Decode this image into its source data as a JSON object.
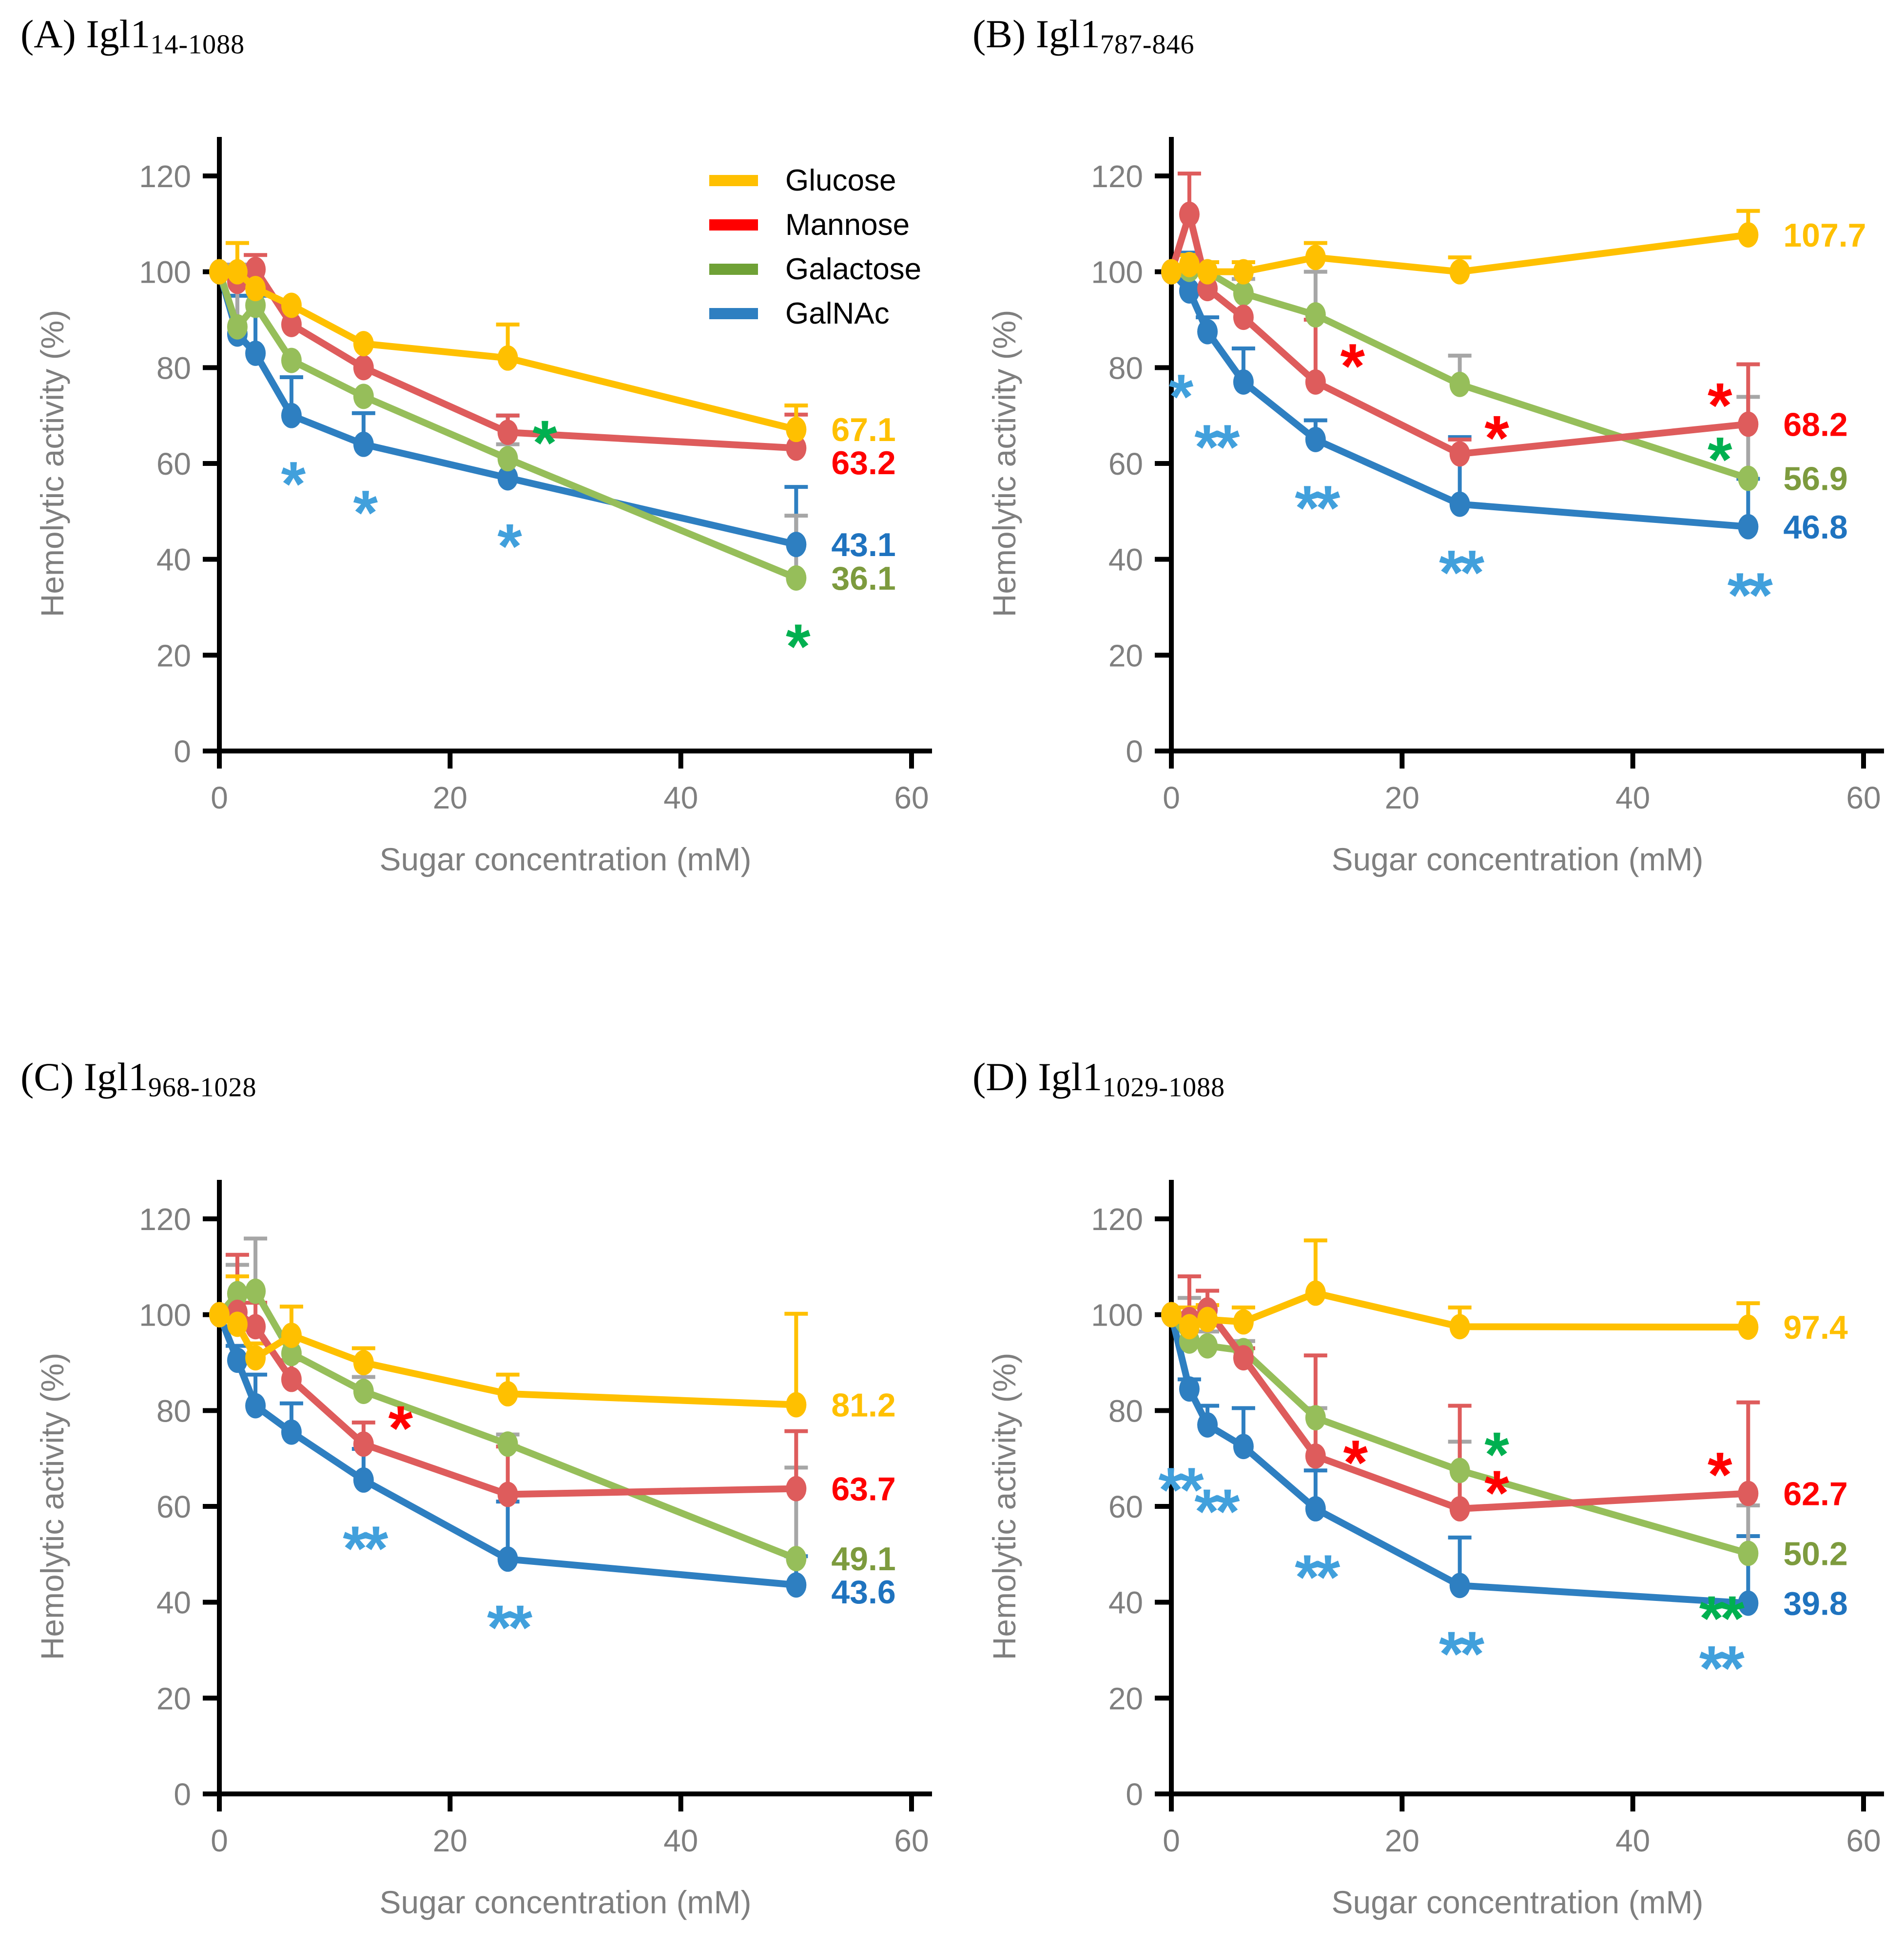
{
  "page": {
    "background": "#FFFFFF"
  },
  "legend": {
    "items": [
      {
        "label": "Glucose",
        "color": "#FFC000"
      },
      {
        "label": "Mannose",
        "color": "#FF0000"
      },
      {
        "label": "Galactose",
        "color": "#6FA136"
      },
      {
        "label": "GalNAc",
        "color": "#2E7FC1"
      }
    ]
  },
  "series_styles": {
    "Glucose": {
      "line": "#FFC000",
      "label": "#FFC000",
      "star": "#FFC000",
      "err": "#FFC000"
    },
    "Mannose": {
      "line": "#DE5C5C",
      "label": "#FF0000",
      "star": "#FF0000",
      "err": "#DE5C5C"
    },
    "Galactose": {
      "line": "#96BE5A",
      "label": "#7D9B3E",
      "star": "#00B050",
      "err": "#A6A6A6"
    },
    "GalNAc": {
      "line": "#2E7FC1",
      "label": "#1F73BF",
      "star": "#41A0DC",
      "err": "#2E7FC1"
    }
  },
  "axes": {
    "x_label": "Sugar concentration (mM)",
    "y_label": "Hemolytic activity (%)",
    "x_ticks": [
      0,
      20,
      40,
      60
    ],
    "y_ticks": [
      0,
      20,
      40,
      60,
      80,
      100,
      120
    ],
    "xlim": [
      0,
      60
    ],
    "ylim": [
      0,
      120
    ],
    "text_color": "#7F7F7F",
    "axis_color": "#000000"
  },
  "chart_data": [
    {
      "type": "line",
      "panel": "A",
      "title_prefix": "(A) Igl1",
      "title_sub": "14-1088",
      "x": [
        0,
        1.56,
        3.13,
        6.25,
        12.5,
        25,
        50
      ],
      "series": [
        {
          "name": "Glucose",
          "values": [
            100,
            100,
            96.5,
            93,
            85,
            82,
            67.1
          ],
          "err_up": [
            0,
            6,
            0,
            0,
            0,
            7,
            5
          ],
          "end_label": "67.1"
        },
        {
          "name": "Mannose",
          "values": [
            100,
            98,
            100.5,
            89,
            80,
            66.5,
            63.2
          ],
          "err_up": [
            0,
            0,
            3,
            0,
            0,
            3.5,
            7
          ],
          "end_label": "63.2"
        },
        {
          "name": "Galactose",
          "values": [
            100,
            88.5,
            93,
            81.5,
            74,
            61,
            36.1
          ],
          "err_up": [
            0,
            13,
            0,
            0,
            0,
            3,
            13
          ],
          "end_label": "36.1"
        },
        {
          "name": "GalNAc",
          "values": [
            100,
            87,
            83,
            70,
            64,
            57,
            43.1
          ],
          "err_up": [
            0,
            8,
            12,
            8,
            6.5,
            13,
            12
          ],
          "end_label": "43.1"
        }
      ],
      "annotations": [
        {
          "series": "GalNAc",
          "point": 3,
          "text": "*",
          "placement": "below"
        },
        {
          "series": "GalNAc",
          "point": 4,
          "text": "*",
          "placement": "below"
        },
        {
          "series": "GalNAc",
          "point": 5,
          "text": "*",
          "placement": "below"
        },
        {
          "series": "Galactose",
          "point": 5,
          "text": "*",
          "placement": "aboveright"
        },
        {
          "series": "Galactose",
          "point": 6,
          "text": "*",
          "placement": "below"
        }
      ]
    },
    {
      "type": "line",
      "panel": "B",
      "title_prefix": "(B) Igl1",
      "title_sub": "787-846",
      "x": [
        0,
        1.56,
        3.13,
        6.25,
        12.5,
        25,
        50
      ],
      "series": [
        {
          "name": "Glucose",
          "values": [
            100,
            101.5,
            100,
            100,
            103,
            100,
            107.7
          ],
          "err_up": [
            0,
            2,
            2,
            2,
            3,
            3,
            5
          ],
          "end_label": "107.7"
        },
        {
          "name": "Mannose",
          "values": [
            100,
            112,
            96.5,
            90.5,
            77,
            62,
            68.2
          ],
          "err_up": [
            0,
            8.5,
            0,
            0,
            13,
            3,
            12.5
          ],
          "end_label": "68.2"
        },
        {
          "name": "Galactose",
          "values": [
            100,
            100.5,
            100,
            95.5,
            91,
            76.5,
            56.9
          ],
          "err_up": [
            0,
            3,
            0,
            3,
            9,
            6,
            17
          ],
          "end_label": "56.9"
        },
        {
          "name": "GalNAc",
          "values": [
            100,
            96,
            87.5,
            77,
            65,
            51.5,
            46.8
          ],
          "err_up": [
            0,
            8,
            3,
            7,
            4,
            14,
            10
          ],
          "end_label": "46.8"
        }
      ],
      "annotations": [
        {
          "series": "GalNAc",
          "point": 2,
          "text": "*",
          "placement": "belowleft"
        },
        {
          "series": "GalNAc",
          "point": 3,
          "text": "**",
          "placement": "belowleft"
        },
        {
          "series": "GalNAc",
          "point": 4,
          "text": "**",
          "placement": "below"
        },
        {
          "series": "GalNAc",
          "point": 5,
          "text": "**",
          "placement": "below"
        },
        {
          "series": "GalNAc",
          "point": 6,
          "text": "**",
          "placement": "below"
        },
        {
          "series": "Mannose",
          "point": 4,
          "text": "*",
          "placement": "aboveright"
        },
        {
          "series": "Mannose",
          "point": 5,
          "text": "*",
          "placement": "aboveright"
        },
        {
          "series": "Mannose",
          "point": 6,
          "text": "*",
          "placement": "aboveleft"
        },
        {
          "series": "Galactose",
          "point": 6,
          "text": "*",
          "placement": "aboveleft"
        }
      ]
    },
    {
      "type": "line",
      "panel": "C",
      "title_prefix": "(C) Igl1",
      "title_sub": "968-1028",
      "x": [
        0,
        1.56,
        3.13,
        6.25,
        12.5,
        25,
        50
      ],
      "series": [
        {
          "name": "Glucose",
          "values": [
            100,
            98,
            91,
            95.7,
            90,
            83.5,
            81.2
          ],
          "err_up": [
            0,
            10,
            3,
            6,
            3,
            4,
            19
          ],
          "end_label": "81.2"
        },
        {
          "name": "Mannose",
          "values": [
            100,
            100.5,
            97.5,
            86.5,
            73,
            62.5,
            63.7
          ],
          "err_up": [
            0,
            12,
            5,
            4,
            4.5,
            10,
            12
          ],
          "end_label": "63.7"
        },
        {
          "name": "Galactose",
          "values": [
            100,
            104.4,
            104.9,
            91.9,
            84,
            73,
            49.1
          ],
          "err_up": [
            0,
            6,
            11,
            0,
            3,
            2,
            19
          ],
          "end_label": "49.1"
        },
        {
          "name": "GalNAc",
          "values": [
            100,
            90.5,
            81,
            75.5,
            65.5,
            49,
            43.6
          ],
          "err_up": [
            0,
            3,
            6.5,
            6,
            6.5,
            12,
            6
          ],
          "end_label": "43.6"
        }
      ],
      "annotations": [
        {
          "series": "Mannose",
          "point": 4,
          "text": "*",
          "placement": "aboveright"
        },
        {
          "series": "GalNAc",
          "point": 4,
          "text": "**",
          "placement": "below"
        },
        {
          "series": "GalNAc",
          "point": 5,
          "text": "**",
          "placement": "below"
        }
      ]
    },
    {
      "type": "line",
      "panel": "D",
      "title_prefix": "(D) Igl1",
      "title_sub": "1029-1088",
      "x": [
        0,
        1.56,
        3.13,
        6.25,
        12.5,
        25,
        50
      ],
      "series": [
        {
          "name": "Glucose",
          "values": [
            100,
            97.5,
            99,
            98.5,
            104.5,
            97.5,
            97.4
          ],
          "err_up": [
            0,
            4,
            3,
            3,
            11,
            4,
            5
          ],
          "end_label": "97.4"
        },
        {
          "name": "Mannose",
          "values": [
            100,
            99,
            101,
            91,
            70.5,
            59.5,
            62.7
          ],
          "err_up": [
            0,
            9,
            4,
            2,
            21,
            21.5,
            19
          ],
          "end_label": "62.7"
        },
        {
          "name": "Galactose",
          "values": [
            100,
            94.5,
            93.5,
            92.5,
            78.5,
            67.5,
            50.2
          ],
          "err_up": [
            0,
            9,
            3,
            2,
            2,
            6,
            10
          ],
          "end_label": "50.2"
        },
        {
          "name": "GalNAc",
          "values": [
            100,
            84.5,
            77,
            72.5,
            59.5,
            43.5,
            39.8
          ],
          "err_up": [
            0,
            2,
            4,
            8,
            8,
            10,
            14
          ],
          "end_label": "39.8"
        }
      ],
      "annotations": [
        {
          "series": "GalNAc",
          "point": 2,
          "text": "**",
          "placement": "belowleft"
        },
        {
          "series": "GalNAc",
          "point": 3,
          "text": "**",
          "placement": "belowleft"
        },
        {
          "series": "GalNAc",
          "point": 4,
          "text": "**",
          "placement": "below"
        },
        {
          "series": "GalNAc",
          "point": 5,
          "text": "**",
          "placement": "below"
        },
        {
          "series": "GalNAc",
          "point": 6,
          "text": "**",
          "placement": "belowleft"
        },
        {
          "series": "Mannose",
          "point": 4,
          "text": "*",
          "placement": "right"
        },
        {
          "series": "Mannose",
          "point": 5,
          "text": "*",
          "placement": "aboveright"
        },
        {
          "series": "Mannose",
          "point": 6,
          "text": "*",
          "placement": "aboveleft"
        },
        {
          "series": "Galactose",
          "point": 5,
          "text": "*",
          "placement": "aboveright"
        },
        {
          "series": "Galactose",
          "point": 6,
          "text": "**",
          "placement": "belowleft"
        }
      ]
    }
  ]
}
